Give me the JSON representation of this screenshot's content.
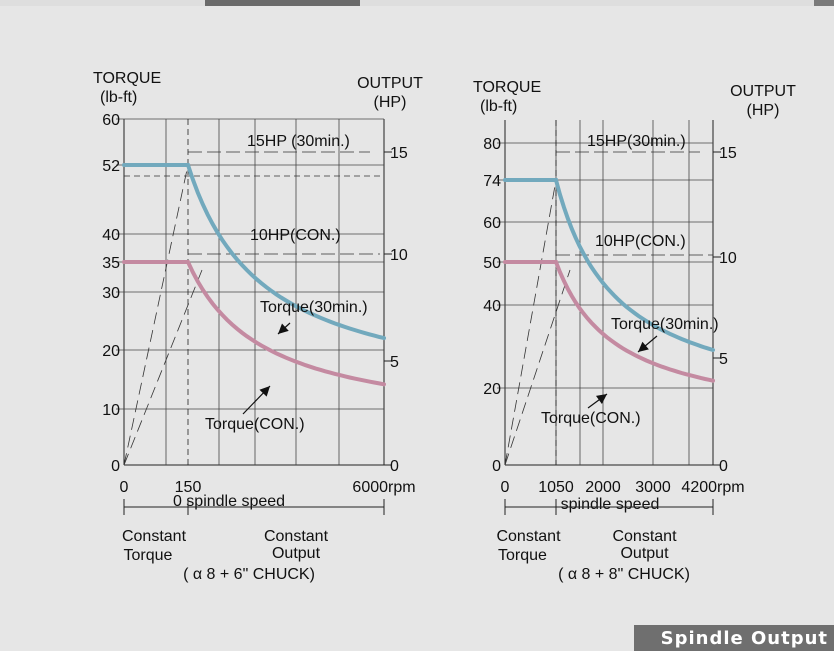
{
  "caption": "Spindle Output",
  "chart_data": [
    {
      "type": "line",
      "ylabel_left": [
        "TORQUE",
        "(lb-ft)"
      ],
      "ylabel_right": [
        "OUTPUT",
        "(HP)"
      ],
      "y_left_range": [
        0,
        60
      ],
      "y_left_ticks": [
        0,
        10,
        20,
        30,
        35,
        40,
        52,
        60
      ],
      "y_right_range": [
        0,
        16
      ],
      "y_right_ticks": [
        0,
        5,
        10,
        15
      ],
      "x_range": [
        0,
        6000
      ],
      "x_ticks": [
        0,
        150,
        6000
      ],
      "x_tick_labels": [
        "0",
        "150",
        "6000rpm"
      ],
      "x_axis_label": "0 spindle speed",
      "regions": [
        "Constant Torque",
        "Constant Output"
      ],
      "chuck_label": "( α 8 + 6\" CHUCK)",
      "annotations": {
        "hp30": "15HP (30min.)",
        "hpcon": "10HP(CON.)",
        "t30": "Torque(30min.)",
        "tcon": "Torque(CON.)"
      },
      "series": [
        {
          "name": "Torque(30min.)",
          "color": "#72a9bd",
          "base_torque": 52,
          "knee_rpm": 1000,
          "end_torque": 22
        },
        {
          "name": "Torque(CON.)",
          "color": "#c48aa1",
          "base_torque": 35,
          "knee_rpm": 1000,
          "end_torque": 14
        }
      ]
    },
    {
      "type": "line",
      "ylabel_left": [
        "TORQUE",
        "(lb-ft)"
      ],
      "ylabel_right": [
        "OUTPUT",
        "(HP)"
      ],
      "y_left_range": [
        0,
        90
      ],
      "y_left_ticks": [
        0,
        20,
        40,
        50,
        60,
        74,
        80
      ],
      "y_right_range": [
        0,
        16
      ],
      "y_right_ticks": [
        0,
        5,
        10,
        15
      ],
      "x_range": [
        0,
        4200
      ],
      "x_ticks": [
        0,
        1050,
        2000,
        3000,
        4200
      ],
      "x_tick_labels": [
        "0",
        "1050",
        "2000",
        "3000",
        "4200rpm"
      ],
      "x_axis_label": "spindle speed",
      "regions": [
        "Constant Torque",
        "Constant Output"
      ],
      "chuck_label": "( α 8 + 8\" CHUCK)",
      "annotations": {
        "hp30": "15HP(30min.)",
        "hpcon": "10HP(CON.)",
        "t30": "Torque(30min.)",
        "tcon": "Torque(CON.)"
      },
      "series": [
        {
          "name": "Torque(30min.)",
          "color": "#72a9bd",
          "base_torque": 74,
          "knee_rpm": 1050,
          "end_torque": 30
        },
        {
          "name": "Torque(CON.)",
          "color": "#c48aa1",
          "base_torque": 50,
          "knee_rpm": 1050,
          "end_torque": 22
        }
      ]
    }
  ]
}
